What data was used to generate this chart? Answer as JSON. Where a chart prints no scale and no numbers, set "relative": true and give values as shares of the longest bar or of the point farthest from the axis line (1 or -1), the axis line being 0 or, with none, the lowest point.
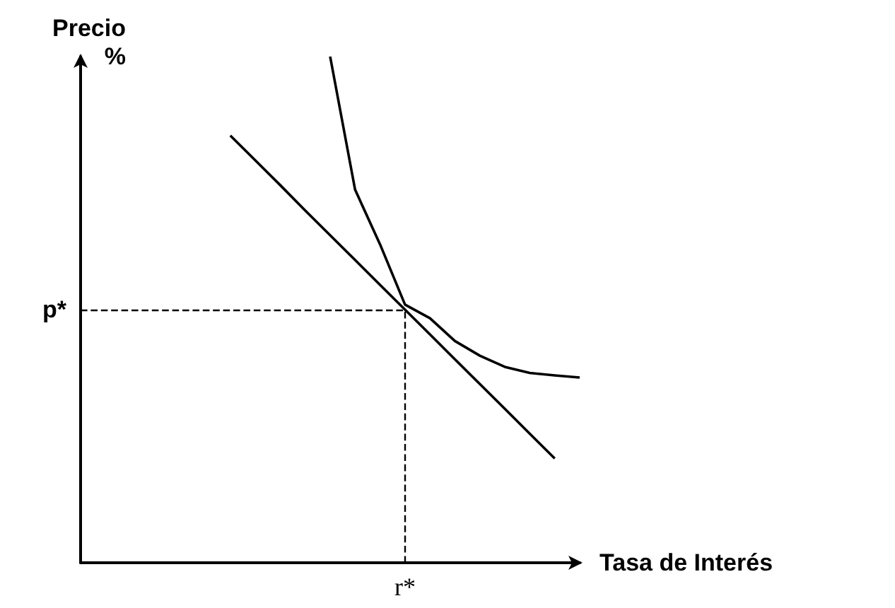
{
  "chart_data": {
    "type": "line",
    "relative": true,
    "xlabel": "Tasa de Interés",
    "ylabel": "Precio\n%",
    "marker": "none",
    "grid": false,
    "categories": [
      null,
      null,
      null,
      null,
      null,
      null,
      null,
      null,
      null,
      null,
      null,
      null,
      null,
      null,
      null,
      null,
      null,
      null,
      null,
      null,
      null
    ],
    "series": [
      {
        "color": "#000000",
        "values": [
          null,
          null,
          null,
          null,
          null,
          null,
          null,
          null,
          null,
          null,
          1,
          0.737,
          0.629,
          0.51,
          0.483,
          0.438,
          0.409,
          0.387,
          0.375,
          0.37,
          0.366
        ]
      },
      {
        "color": "#000000",
        "values": [
          null,
          null,
          null,
          null,
          null,
          null,
          0.844,
          0.795,
          0.746,
          0.696,
          0.647,
          0.598,
          0.549,
          0.5,
          0.451,
          0.402,
          0.353,
          0.304,
          0.255,
          0.206,
          null
        ]
      }
    ],
    "ref_lines": [
      {
        "axis": "y",
        "value": 0.5,
        "label": "p*",
        "line_style": "dashed",
        "color": "#000000"
      }
    ],
    "annotations": [
      "r*"
    ]
  }
}
